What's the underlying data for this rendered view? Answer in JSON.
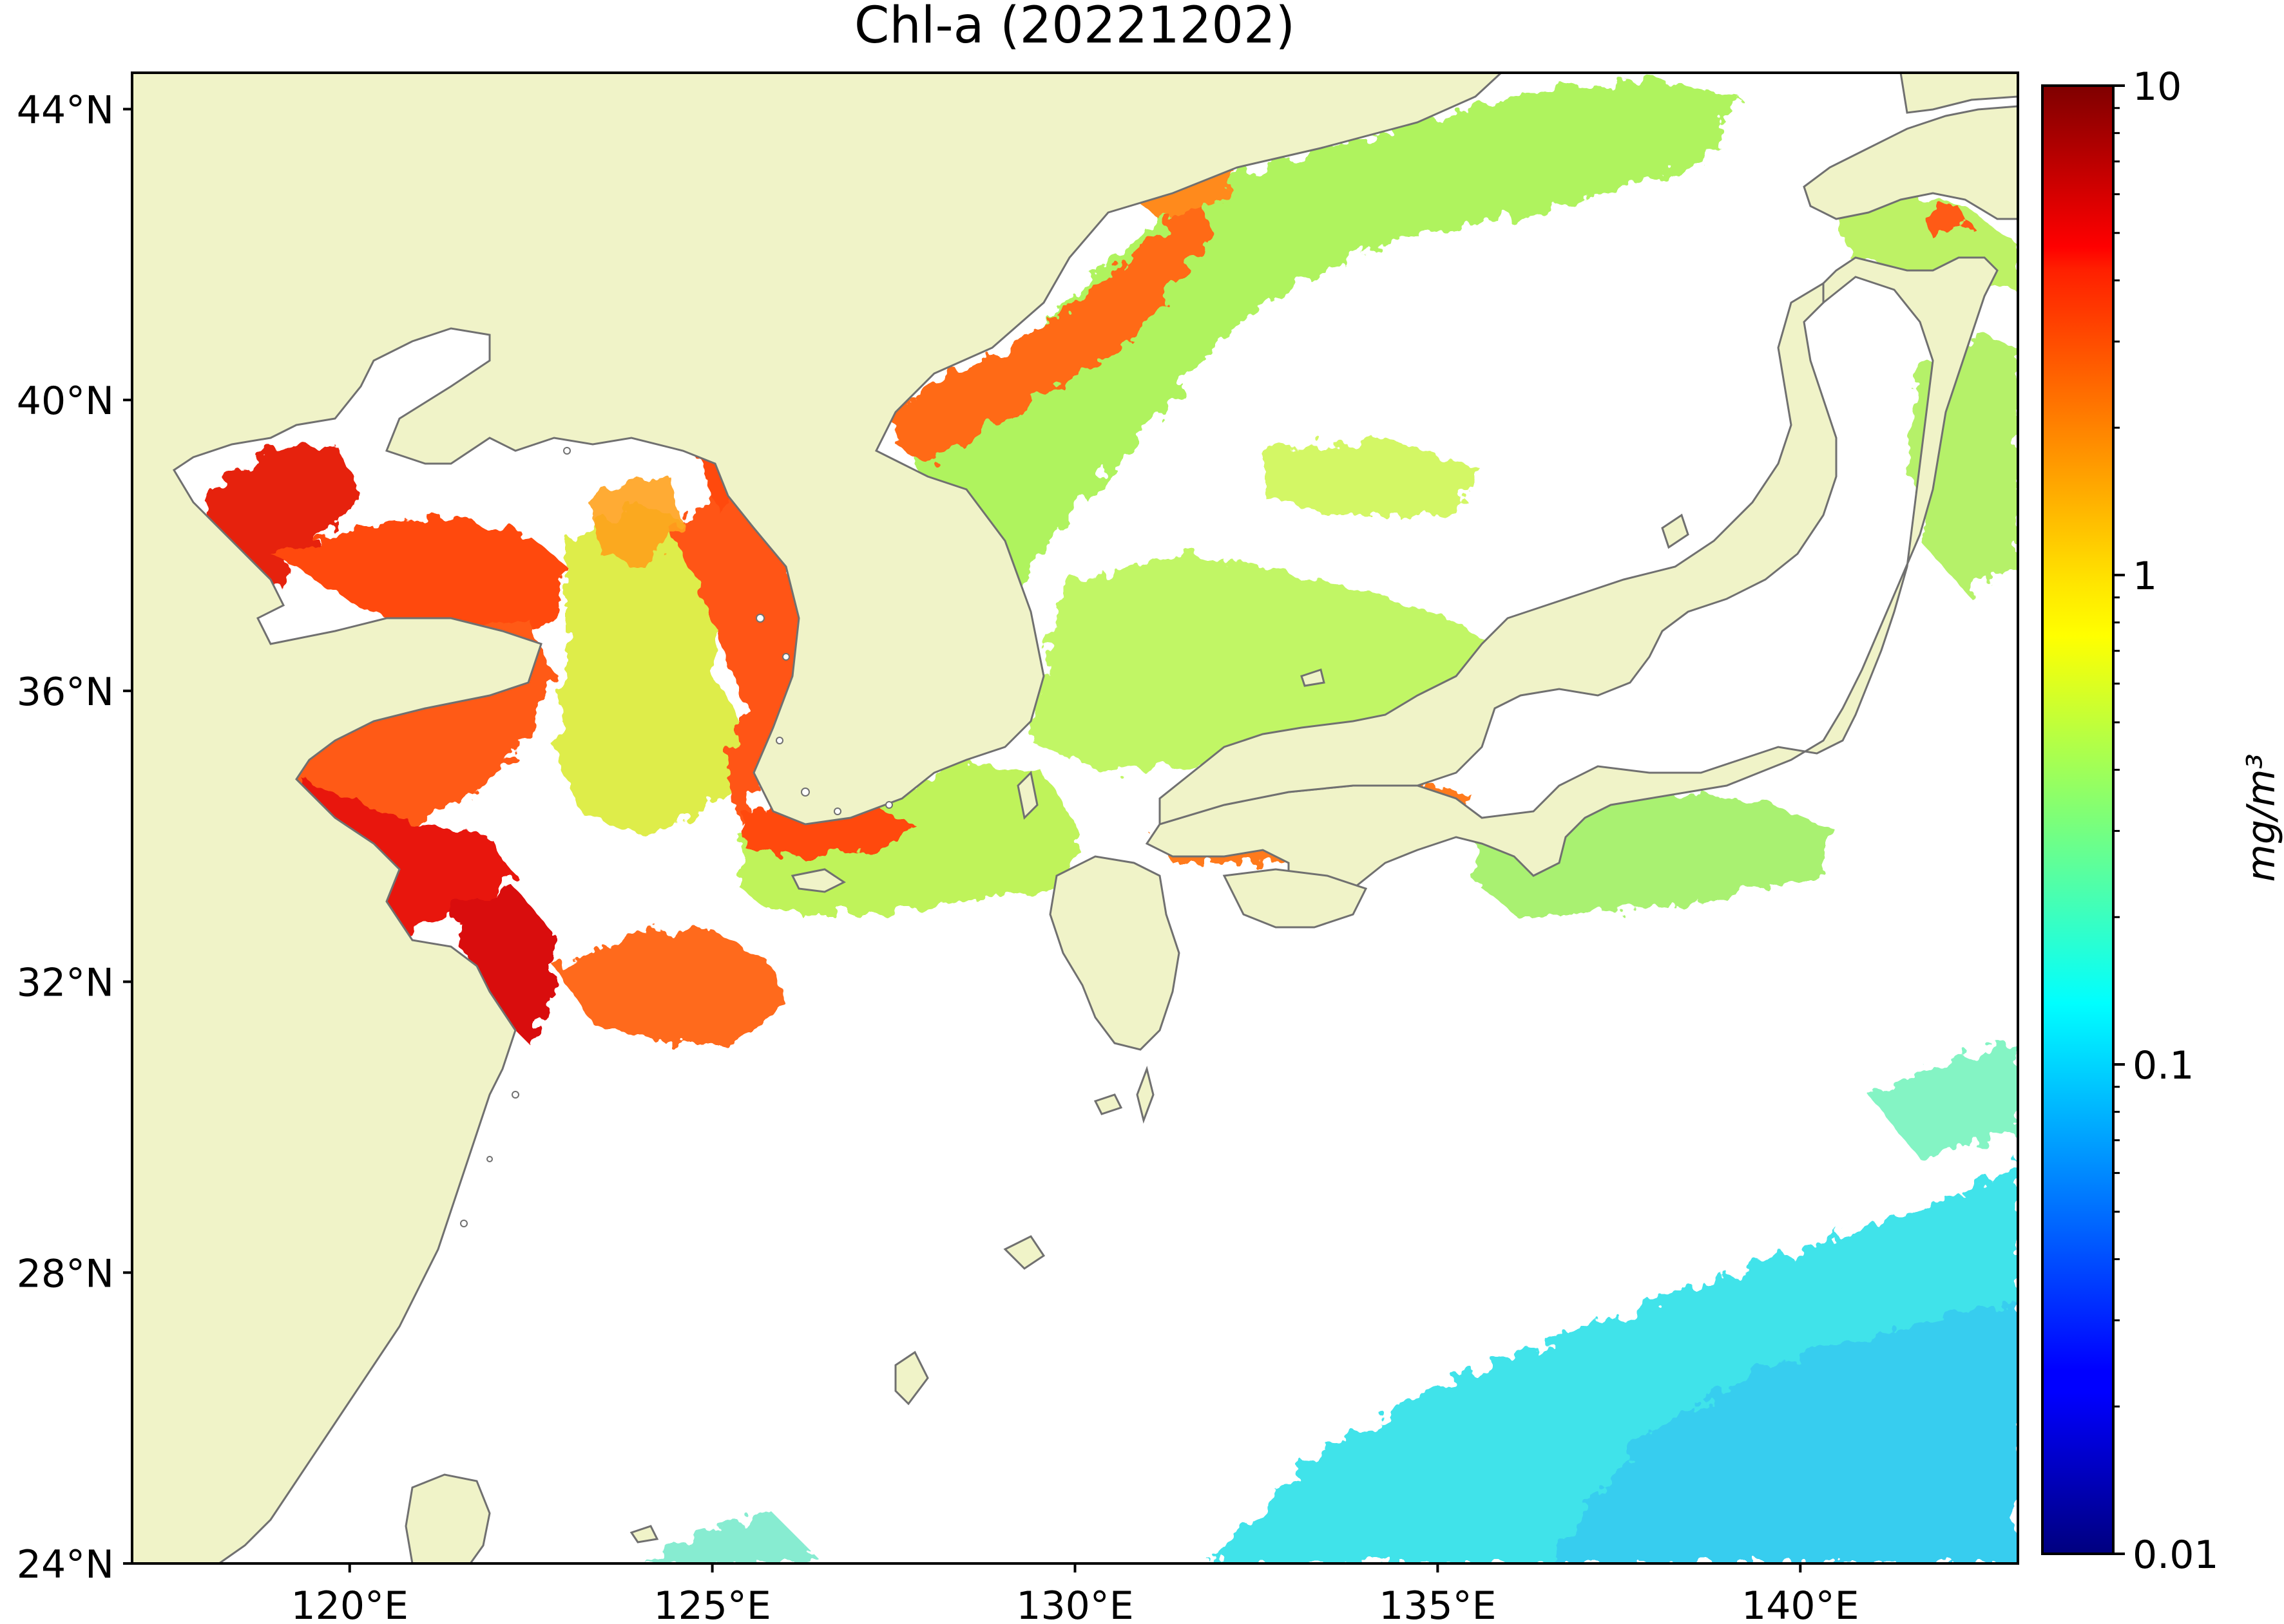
{
  "title": "Chl-a (20221202)",
  "lat_ticks": [
    {
      "lat": 44,
      "label": "44°N"
    },
    {
      "lat": 40,
      "label": "40°N"
    },
    {
      "lat": 36,
      "label": "36°N"
    },
    {
      "lat": 32,
      "label": "32°N"
    },
    {
      "lat": 28,
      "label": "28°N"
    },
    {
      "lat": 24,
      "label": "24°N"
    }
  ],
  "lon_ticks": [
    {
      "lon": 120,
      "label": "120°E"
    },
    {
      "lon": 125,
      "label": "125°E"
    },
    {
      "lon": 130,
      "label": "130°E"
    },
    {
      "lon": 135,
      "label": "135°E"
    },
    {
      "lon": 140,
      "label": "140°E"
    }
  ],
  "extent": {
    "lon_min": 117,
    "lon_max": 143,
    "lat_min": 24,
    "lat_max": 44.5
  },
  "colorbar": {
    "label": "mg/m³",
    "scale": "log",
    "range": [
      0.01,
      10
    ],
    "ticks": [
      {
        "value": 10,
        "label": "10"
      },
      {
        "value": 1,
        "label": "1"
      },
      {
        "value": 0.1,
        "label": "0.1"
      },
      {
        "value": 0.01,
        "label": "0.01"
      }
    ],
    "colormap": "jet"
  },
  "colors": {
    "land": "#f0f3c8",
    "coast": "#707070",
    "no_data": "#ffffff"
  }
}
